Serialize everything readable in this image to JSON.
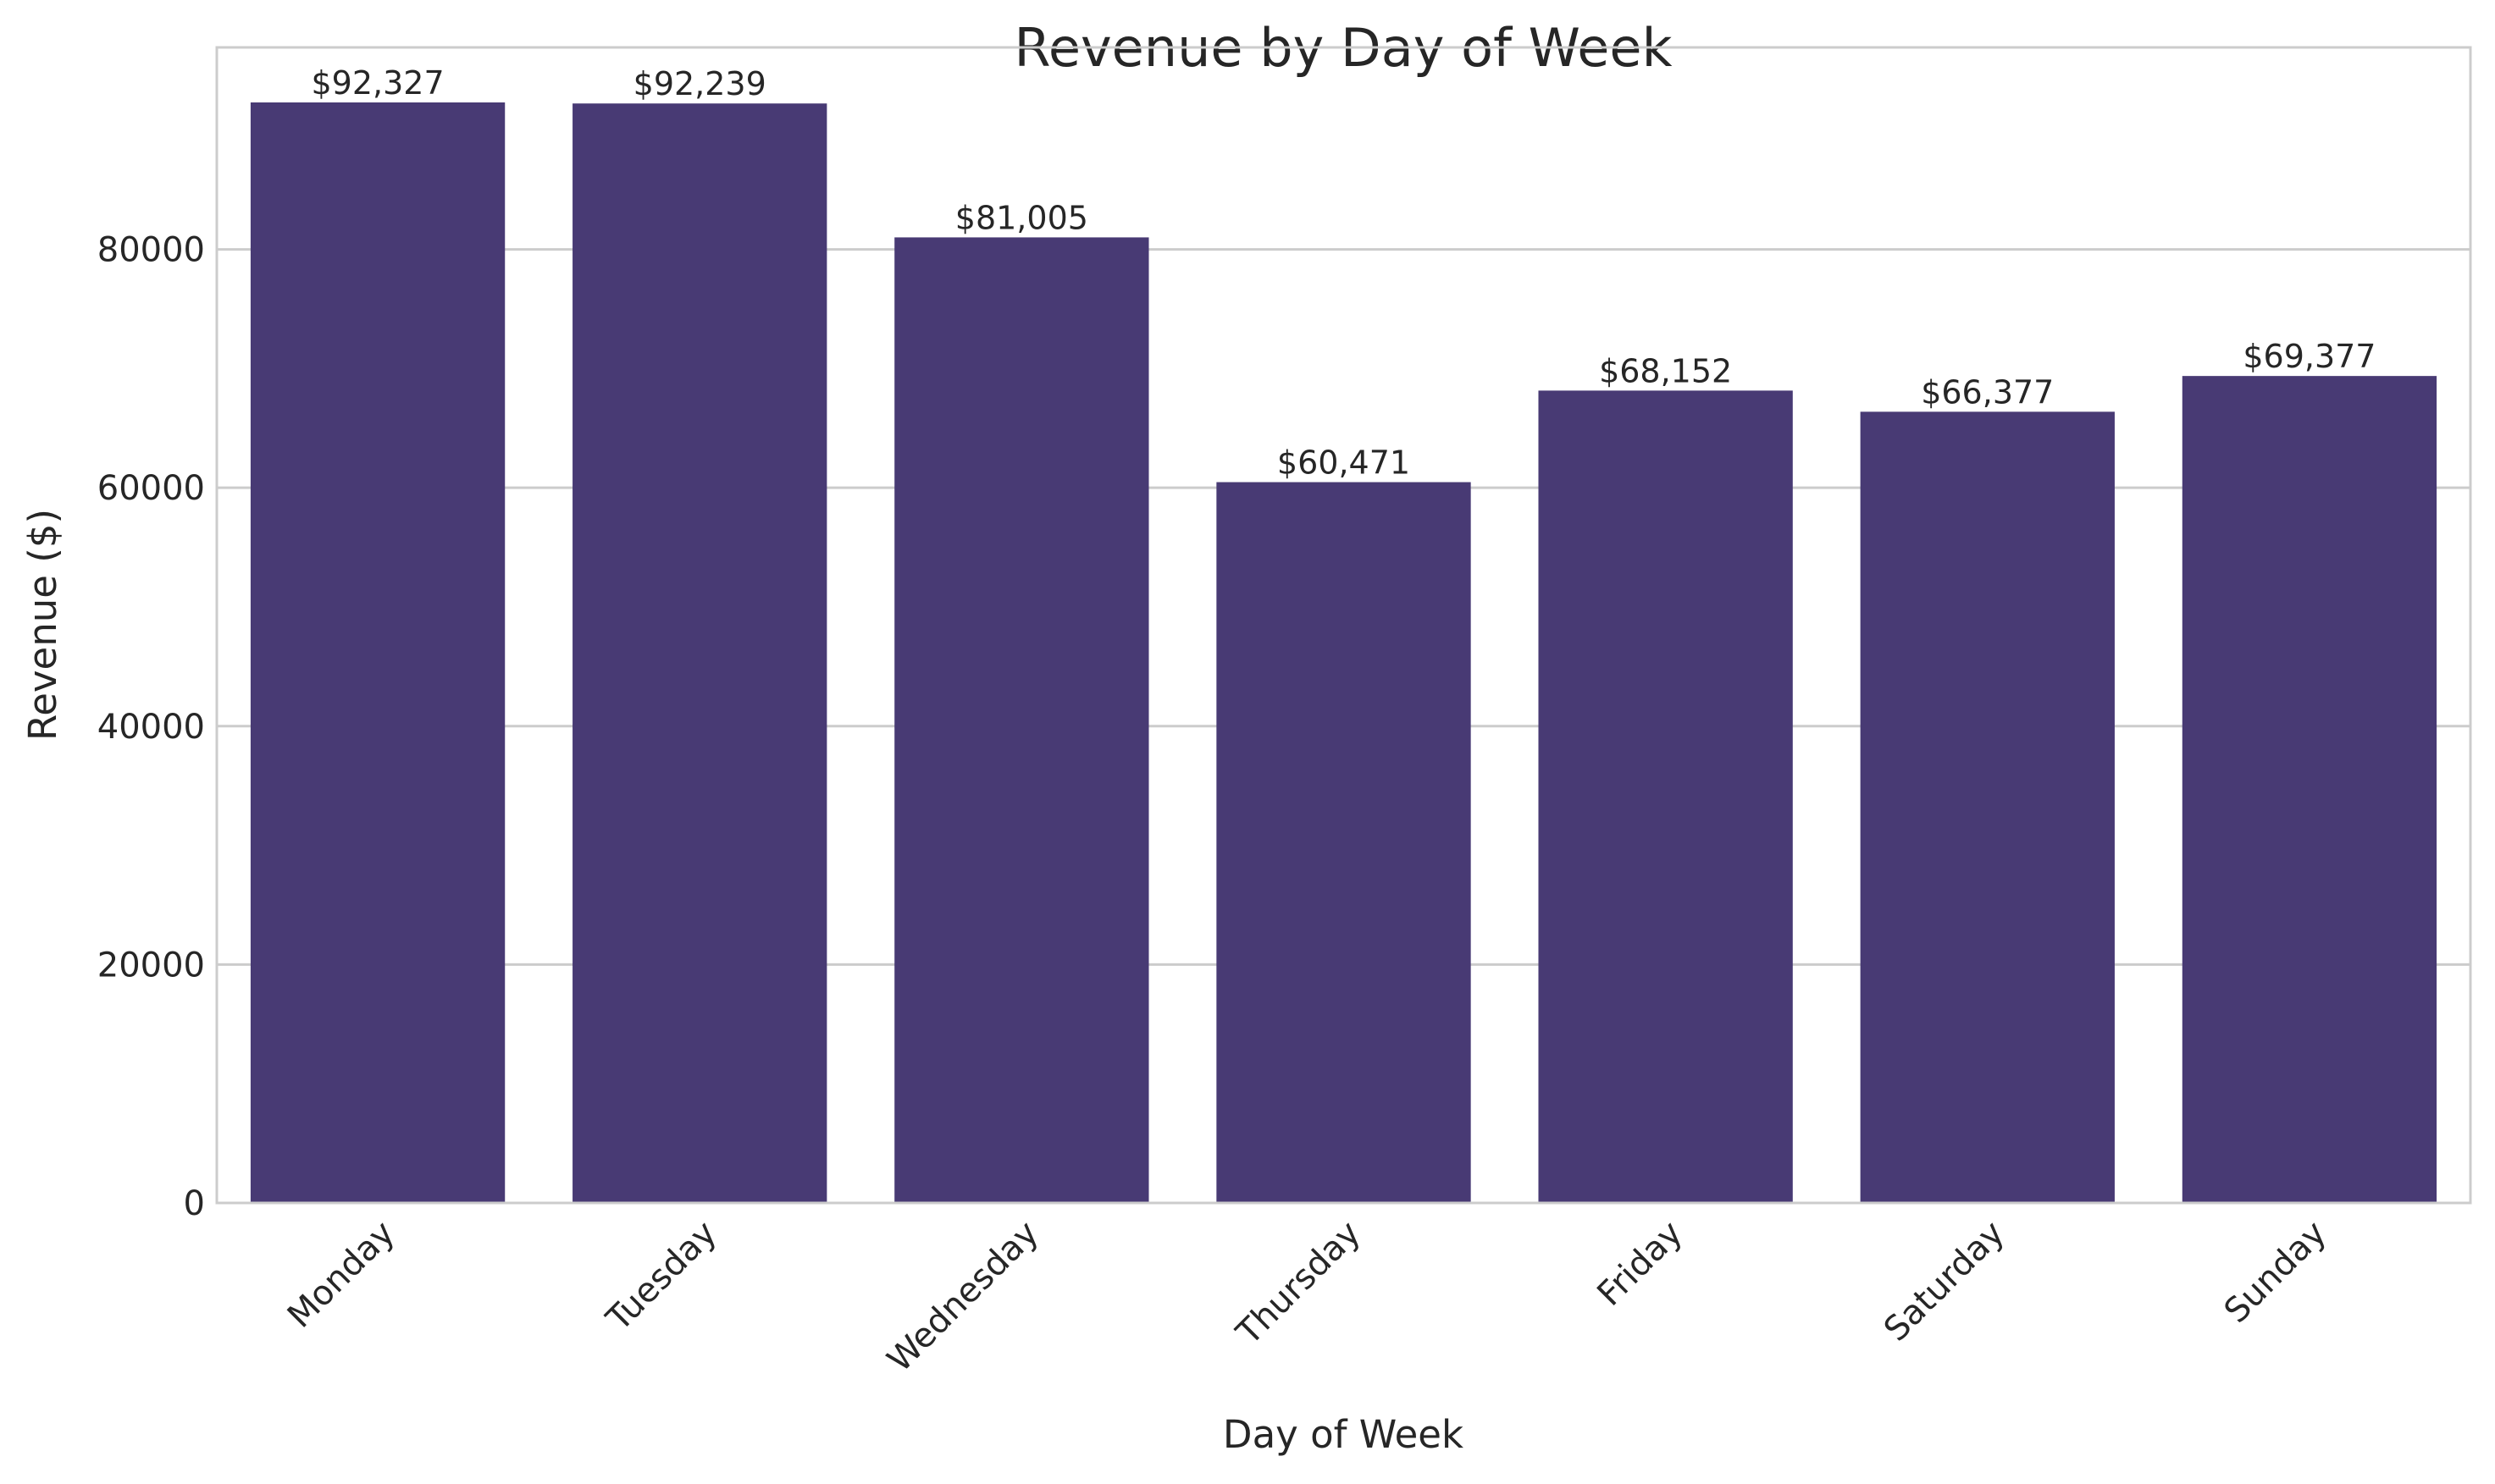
{
  "chart_data": {
    "type": "bar",
    "title": "Revenue by Day of Week",
    "xlabel": "Day of Week",
    "ylabel": "Revenue ($)",
    "categories": [
      "Monday",
      "Tuesday",
      "Wednesday",
      "Thursday",
      "Friday",
      "Saturday",
      "Sunday"
    ],
    "values": [
      92327,
      92239,
      81005,
      60471,
      68152,
      66377,
      69377
    ],
    "value_labels": [
      "$92,327",
      "$92,239",
      "$81,005",
      "$60,471",
      "$68,152",
      "$66,377",
      "$69,377"
    ],
    "yticks": [
      0,
      20000,
      40000,
      60000,
      80000
    ],
    "ytick_labels": [
      "0",
      "20000",
      "40000",
      "60000",
      "80000"
    ],
    "ylim": [
      0,
      96943
    ],
    "grid": "horizontal",
    "bar_color": "#483a74",
    "grid_color": "#cccccc",
    "x_tick_rotation": "45 degrees"
  }
}
